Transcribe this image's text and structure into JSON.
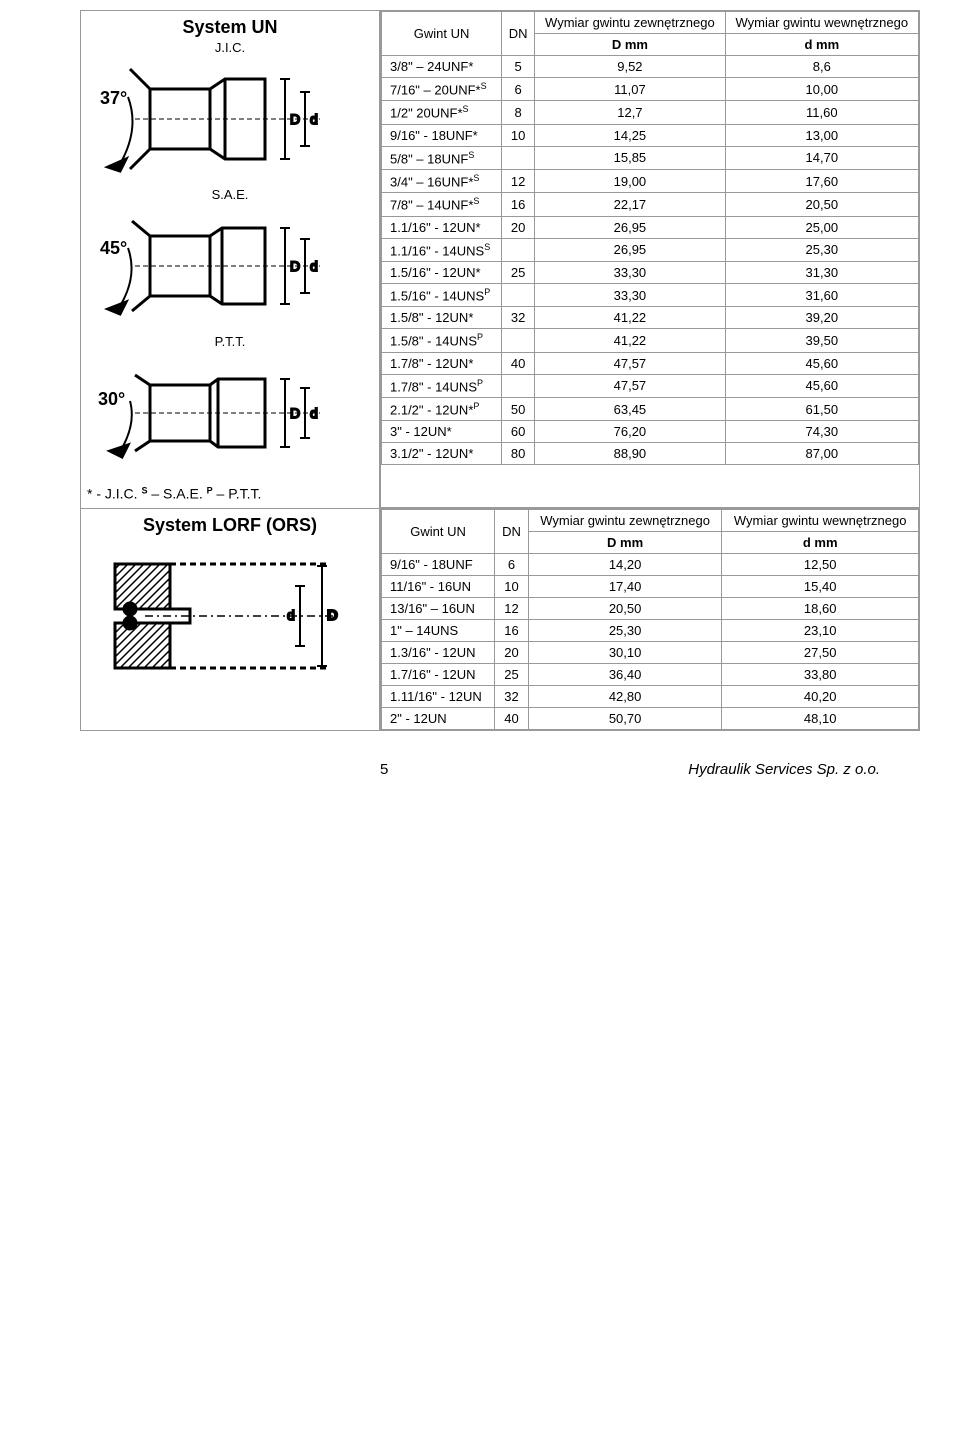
{
  "system_un": {
    "title": "System UN",
    "jic_label": "J.I.C.",
    "sae_label": "S.A.E.",
    "ptt_label": "P.T.T.",
    "note": "* - J.I.C. S – S.A.E. P – P.T.T.",
    "headers": {
      "col1": "Gwint UN",
      "col2": "DN",
      "col3_top": "Wymiar gwintu zewnętrznego",
      "col3_bot": "D mm",
      "col4_top": "Wymiar gwintu wewnętrznego",
      "col4_bot": "d mm"
    },
    "rows": [
      {
        "g": "3/8\" – 24UNF*",
        "dn": "5",
        "D": "9,52",
        "d": "8,6"
      },
      {
        "g": "7/16\" – 20UNF*S",
        "sup": "S",
        "dn": "6",
        "D": "11,07",
        "d": "10,00"
      },
      {
        "g": "1/2\" 20UNF*S",
        "sup": "S",
        "dn": "8",
        "D": "12,7",
        "d": "11,60"
      },
      {
        "g": "9/16\" - 18UNF*",
        "dn": "10",
        "D": "14,25",
        "d": "13,00"
      },
      {
        "g": "5/8\" – 18UNFS",
        "sup": "S",
        "dn": "",
        "D": "15,85",
        "d": "14,70"
      },
      {
        "g": "3/4\" – 16UNF*S",
        "sup": "S",
        "dn": "12",
        "D": "19,00",
        "d": "17,60"
      },
      {
        "g": "7/8\" – 14UNF*S",
        "sup": "S",
        "dn": "16",
        "D": "22,17",
        "d": "20,50"
      },
      {
        "g": "1.1/16\" - 12UN*",
        "dn": "20",
        "D": "26,95",
        "d": "25,00"
      },
      {
        "g": "1.1/16\" - 14UNSS",
        "sup": "S",
        "dn": "",
        "D": "26,95",
        "d": "25,30"
      },
      {
        "g": "1.5/16\" - 12UN*",
        "dn": "25",
        "D": "33,30",
        "d": "31,30"
      },
      {
        "g": "1.5/16\" - 14UNSP",
        "sup": "P",
        "dn": "",
        "D": "33,30",
        "d": "31,60"
      },
      {
        "g": "1.5/8\" - 12UN*",
        "dn": "32",
        "D": "41,22",
        "d": "39,20"
      },
      {
        "g": "1.5/8\" - 14UNSP",
        "sup": "P",
        "dn": "",
        "D": "41,22",
        "d": "39,50"
      },
      {
        "g": "1.7/8\" - 12UN*",
        "dn": "40",
        "D": "47,57",
        "d": "45,60"
      },
      {
        "g": "1.7/8\" - 14UNSP",
        "sup": "P",
        "dn": "",
        "D": "47,57",
        "d": "45,60"
      },
      {
        "g": "2.1/2\" - 12UN*P",
        "sup": "P",
        "dn": "50",
        "D": "63,45",
        "d": "61,50"
      },
      {
        "g": "3\" - 12UN*",
        "dn": "60",
        "D": "76,20",
        "d": "74,30"
      },
      {
        "g": "3.1/2\" - 12UN*",
        "dn": "80",
        "D": "88,90",
        "d": "87,00"
      }
    ]
  },
  "system_lorf": {
    "title": "System LORF (ORS)",
    "headers": {
      "col1": "Gwint UN",
      "col2": "DN",
      "col3_top": "Wymiar gwintu zewnętrznego",
      "col3_bot": "D mm",
      "col4_top": "Wymiar gwintu wewnętrznego",
      "col4_bot": "d mm"
    },
    "rows": [
      {
        "g": "9/16\" - 18UNF",
        "dn": "6",
        "D": "14,20",
        "d": "12,50"
      },
      {
        "g": "11/16\" - 16UN",
        "dn": "10",
        "D": "17,40",
        "d": "15,40"
      },
      {
        "g": "13/16\" – 16UN",
        "dn": "12",
        "D": "20,50",
        "d": "18,60"
      },
      {
        "g": "1\" – 14UNS",
        "dn": "16",
        "D": "25,30",
        "d": "23,10"
      },
      {
        "g": "1.3/16\" - 12UN",
        "dn": "20",
        "D": "30,10",
        "d": "27,50"
      },
      {
        "g": "1.7/16\" - 12UN",
        "dn": "25",
        "D": "36,40",
        "d": "33,80"
      },
      {
        "g": "1.11/16\" - 12UN",
        "dn": "32",
        "D": "42,80",
        "d": "40,20"
      },
      {
        "g": "2\" - 12UN",
        "dn": "40",
        "D": "50,70",
        "d": "48,10"
      }
    ]
  },
  "footer": {
    "page": "5",
    "company": "Hydraulik Services Sp. z o.o."
  },
  "colors": {
    "border": "#999999",
    "text": "#000000",
    "bg": "#ffffff"
  }
}
